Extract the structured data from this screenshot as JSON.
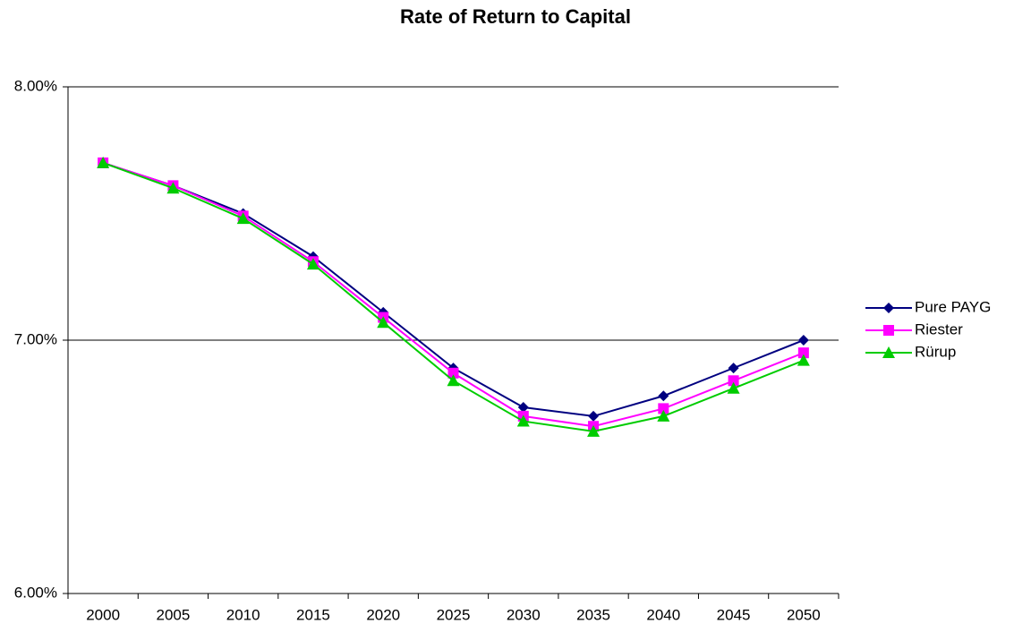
{
  "chart_data": {
    "type": "line",
    "title": "Rate of Return to Capital",
    "categories": [
      "2000",
      "2005",
      "2010",
      "2015",
      "2020",
      "2025",
      "2030",
      "2035",
      "2040",
      "2045",
      "2050"
    ],
    "series": [
      {
        "name": "Pure PAYG",
        "color": "#000080",
        "marker": "diamond",
        "values": [
          7.7,
          7.61,
          7.5,
          7.33,
          7.11,
          6.89,
          6.735,
          6.7,
          6.78,
          6.89,
          7.0
        ]
      },
      {
        "name": "Riester",
        "color": "#ff00ff",
        "marker": "square",
        "values": [
          7.7,
          7.61,
          7.49,
          7.31,
          7.09,
          6.87,
          6.7,
          6.66,
          6.73,
          6.84,
          6.95
        ]
      },
      {
        "name": "Rürup",
        "color": "#00cc00",
        "marker": "triangle",
        "values": [
          7.7,
          7.6,
          7.48,
          7.3,
          7.07,
          6.84,
          6.68,
          6.64,
          6.7,
          6.81,
          6.92
        ]
      }
    ],
    "ylim": [
      6,
      8
    ],
    "yticks": [
      {
        "value": 6,
        "label": "6.00%"
      },
      {
        "value": 7,
        "label": "7.00%"
      },
      {
        "value": 8,
        "label": "8.00%"
      }
    ],
    "grid": true,
    "legend": "right"
  }
}
